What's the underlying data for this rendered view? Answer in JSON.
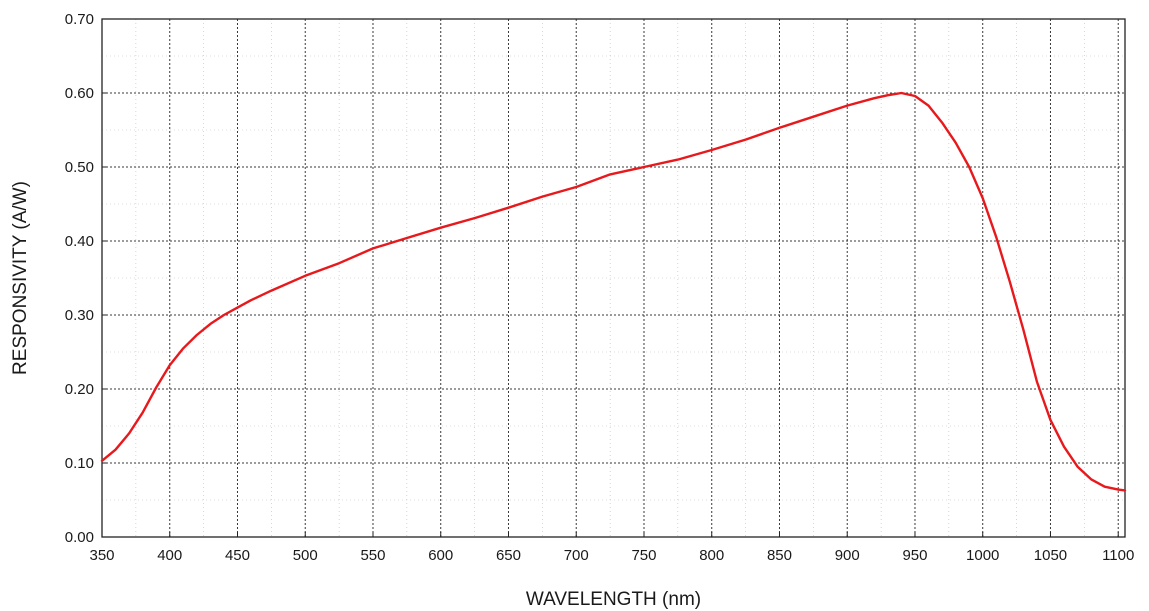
{
  "chart_data": {
    "type": "line",
    "xlabel": "WAVELENGTH (nm)",
    "ylabel": "RESPONSIVITY (A/W)",
    "xlim": [
      350,
      1105
    ],
    "ylim": [
      0.0,
      0.7
    ],
    "x_ticks": [
      "350",
      "400",
      "450",
      "500",
      "550",
      "600",
      "650",
      "700",
      "750",
      "800",
      "850",
      "900",
      "950",
      "1000",
      "1050",
      "1100"
    ],
    "x_tick_values": [
      350,
      400,
      450,
      500,
      550,
      600,
      650,
      700,
      750,
      800,
      850,
      900,
      950,
      1000,
      1050,
      1100
    ],
    "y_ticks": [
      "0.00",
      "0.10",
      "0.20",
      "0.30",
      "0.40",
      "0.50",
      "0.60",
      "0.70"
    ],
    "y_tick_values": [
      0.0,
      0.1,
      0.2,
      0.3,
      0.4,
      0.5,
      0.6,
      0.7
    ],
    "grid": true,
    "line_color": "#e8191c",
    "series": [
      {
        "x": [
          350,
          360,
          370,
          380,
          390,
          400,
          410,
          420,
          430,
          440,
          450,
          460,
          475,
          500,
          525,
          550,
          575,
          600,
          625,
          650,
          675,
          700,
          725,
          750,
          775,
          800,
          825,
          850,
          875,
          900,
          920,
          930,
          940,
          950,
          960,
          970,
          980,
          990,
          1000,
          1010,
          1020,
          1030,
          1040,
          1050,
          1060,
          1070,
          1080,
          1090,
          1100,
          1105
        ],
        "y": [
          0.103,
          0.118,
          0.14,
          0.168,
          0.202,
          0.232,
          0.255,
          0.273,
          0.288,
          0.3,
          0.31,
          0.32,
          0.333,
          0.353,
          0.37,
          0.39,
          0.404,
          0.418,
          0.431,
          0.445,
          0.46,
          0.473,
          0.49,
          0.5,
          0.51,
          0.523,
          0.537,
          0.553,
          0.568,
          0.583,
          0.593,
          0.597,
          0.6,
          0.596,
          0.583,
          0.56,
          0.533,
          0.5,
          0.458,
          0.405,
          0.345,
          0.28,
          0.21,
          0.158,
          0.122,
          0.095,
          0.078,
          0.068,
          0.064,
          0.063
        ]
      }
    ]
  }
}
